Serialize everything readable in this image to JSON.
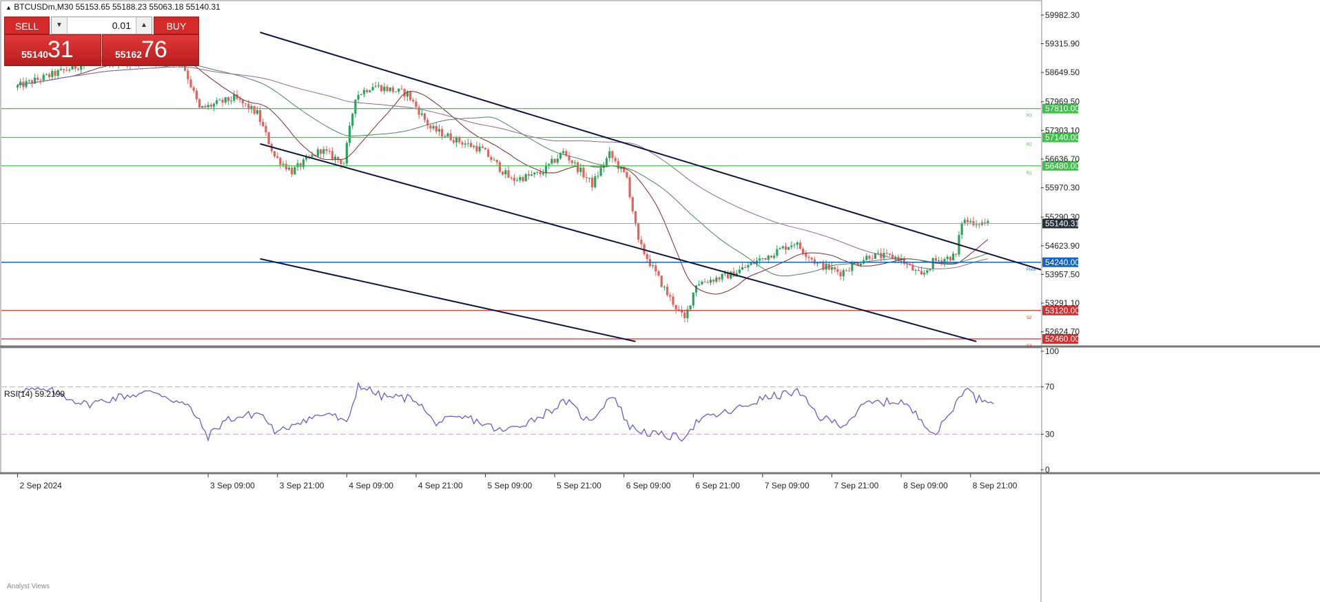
{
  "header": {
    "symbol_line": "BTCUSDm,M30  55153.65 55188.23 55063.18 55140.31",
    "collapse_icon": "triangle-up-icon"
  },
  "trade_panel": {
    "sell_label": "SELL",
    "buy_label": "BUY",
    "lot_value": "0.01",
    "sell_price_small": "55140",
    "sell_price_big": "31",
    "buy_price_small": "55162",
    "buy_price_big": "76"
  },
  "rsi": {
    "title": "RSI(14) 59.2199"
  },
  "footer": {
    "analyst_views": "Analyst Views"
  },
  "colors": {
    "bull": "#26a65b",
    "bear": "#e8605a",
    "resistance": "#3fc24a",
    "pivot": "#1565c0",
    "support": "#d32f2f",
    "channel": "#0d1240",
    "rsi_line": "#6a5acd"
  },
  "chart_data": [
    {
      "type": "candlestick",
      "price_ylim": [
        52300,
        60300
      ],
      "y_ticks": [
        "59982.30",
        "59315.90",
        "58649.50",
        "57969.50",
        "57303.10",
        "56636.70",
        "55970.30",
        "55290.30",
        "54623.90",
        "53957.50",
        "53291.10",
        "52624.70"
      ],
      "x_ticks": [
        "2 Sep 2024",
        "3 Sep 09:00",
        "3 Sep 21:00",
        "4 Sep 09:00",
        "4 Sep 21:00",
        "5 Sep 09:00",
        "5 Sep 21:00",
        "6 Sep 09:00",
        "6 Sep 21:00",
        "7 Sep 09:00",
        "7 Sep 21:00",
        "8 Sep 09:00",
        "8 Sep 21:00"
      ],
      "current_price": {
        "label": "55140.31",
        "value": 55140.31
      },
      "levels": [
        {
          "label": "57810.00",
          "value": 57810,
          "tag": "R3",
          "kind": "resistance"
        },
        {
          "label": "57140.00",
          "value": 57140,
          "tag": "R2",
          "kind": "resistance"
        },
        {
          "label": "56480.00",
          "value": 56480,
          "tag": "R1",
          "kind": "resistance"
        },
        {
          "label": "54240.00",
          "value": 54240,
          "tag": "Pivot",
          "kind": "pivot"
        },
        {
          "label": "53120.00",
          "value": 53120,
          "tag": "S2",
          "kind": "support"
        },
        {
          "label": "52460.00",
          "value": 52460,
          "tag": "S3",
          "kind": "support"
        }
      ],
      "channel_lines": [
        {
          "from": [
            "3 Sep 18:00",
            59580
          ],
          "to": [
            "9 Sep 16:00",
            53790
          ]
        },
        {
          "from": [
            "3 Sep 18:00",
            56990
          ],
          "to": [
            "8 Sep 22:00",
            52400
          ]
        },
        {
          "from": [
            "3 Sep 18:00",
            54320
          ],
          "to": [
            "6 Sep 11:00",
            52400
          ]
        }
      ],
      "close_path": [
        [
          "2 Sep 00:00",
          58300
        ],
        [
          "2 Sep 12:00",
          58850
        ],
        [
          "3 Sep 00:00",
          58950
        ],
        [
          "3 Sep 05:00",
          58900
        ],
        [
          "3 Sep 08:00",
          57800
        ],
        [
          "3 Sep 14:00",
          58050
        ],
        [
          "3 Sep 18:00",
          57700
        ],
        [
          "3 Sep 21:00",
          56700
        ],
        [
          "4 Sep 00:00",
          56350
        ],
        [
          "4 Sep 05:00",
          56850
        ],
        [
          "4 Sep 09:00",
          56550
        ],
        [
          "4 Sep 11:00",
          58100
        ],
        [
          "4 Sep 14:00",
          58350
        ],
        [
          "4 Sep 20:00",
          58150
        ],
        [
          "5 Sep 00:00",
          57350
        ],
        [
          "5 Sep 05:00",
          57050
        ],
        [
          "5 Sep 09:00",
          56850
        ],
        [
          "5 Sep 14:00",
          56150
        ],
        [
          "5 Sep 19:00",
          56300
        ],
        [
          "5 Sep 23:00",
          56800
        ],
        [
          "6 Sep 04:00",
          56050
        ],
        [
          "6 Sep 07:00",
          56750
        ],
        [
          "6 Sep 10:00",
          56200
        ],
        [
          "6 Sep 12:00",
          54700
        ],
        [
          "6 Sep 17:00",
          53500
        ],
        [
          "6 Sep 20:00",
          52900
        ],
        [
          "6 Sep 22:00",
          53750
        ],
        [
          "7 Sep 04:00",
          53950
        ],
        [
          "7 Sep 09:00",
          54300
        ],
        [
          "7 Sep 15:00",
          54700
        ],
        [
          "7 Sep 19:00",
          54200
        ],
        [
          "7 Sep 23:00",
          54000
        ],
        [
          "8 Sep 04:00",
          54400
        ],
        [
          "8 Sep 09:00",
          54350
        ],
        [
          "8 Sep 13:00",
          53900
        ],
        [
          "8 Sep 15:00",
          54250
        ],
        [
          "8 Sep 19:00",
          54400
        ],
        [
          "8 Sep 20:00",
          55200
        ],
        [
          "9 Sep 00:00",
          55150
        ]
      ]
    },
    {
      "type": "line",
      "ylim": [
        0,
        100
      ],
      "y_ticks": [
        "100",
        "70",
        "30",
        "0"
      ],
      "levels": [
        70,
        30
      ],
      "values_path": [
        [
          "2 Sep 00:00",
          68
        ],
        [
          "2 Sep 06:00",
          66
        ],
        [
          "2 Sep 12:00",
          55
        ],
        [
          "2 Sep 18:00",
          62
        ],
        [
          "3 Sep 00:00",
          66
        ],
        [
          "3 Sep 06:00",
          52
        ],
        [
          "3 Sep 09:00",
          28
        ],
        [
          "3 Sep 12:00",
          42
        ],
        [
          "3 Sep 18:00",
          48
        ],
        [
          "3 Sep 21:00",
          30
        ],
        [
          "4 Sep 00:00",
          40
        ],
        [
          "4 Sep 06:00",
          48
        ],
        [
          "4 Sep 09:00",
          38
        ],
        [
          "4 Sep 11:00",
          72
        ],
        [
          "4 Sep 15:00",
          62
        ],
        [
          "4 Sep 21:00",
          60
        ],
        [
          "5 Sep 00:00",
          40
        ],
        [
          "5 Sep 06:00",
          44
        ],
        [
          "5 Sep 09:00",
          38
        ],
        [
          "5 Sep 12:00",
          32
        ],
        [
          "5 Sep 18:00",
          44
        ],
        [
          "5 Sep 23:00",
          58
        ],
        [
          "6 Sep 03:00",
          40
        ],
        [
          "6 Sep 07:00",
          64
        ],
        [
          "6 Sep 10:00",
          36
        ],
        [
          "6 Sep 14:00",
          30
        ],
        [
          "6 Sep 19:00",
          27
        ],
        [
          "6 Sep 22:00",
          42
        ],
        [
          "7 Sep 04:00",
          50
        ],
        [
          "7 Sep 09:00",
          60
        ],
        [
          "7 Sep 15:00",
          66
        ],
        [
          "7 Sep 19:00",
          44
        ],
        [
          "7 Sep 23:00",
          38
        ],
        [
          "8 Sep 03:00",
          56
        ],
        [
          "8 Sep 09:00",
          58
        ],
        [
          "8 Sep 13:00",
          40
        ],
        [
          "8 Sep 15:00",
          30
        ],
        [
          "8 Sep 18:00",
          52
        ],
        [
          "8 Sep 20:00",
          70
        ],
        [
          "8 Sep 22:00",
          60
        ],
        [
          "9 Sep 01:00",
          59
        ]
      ]
    }
  ]
}
